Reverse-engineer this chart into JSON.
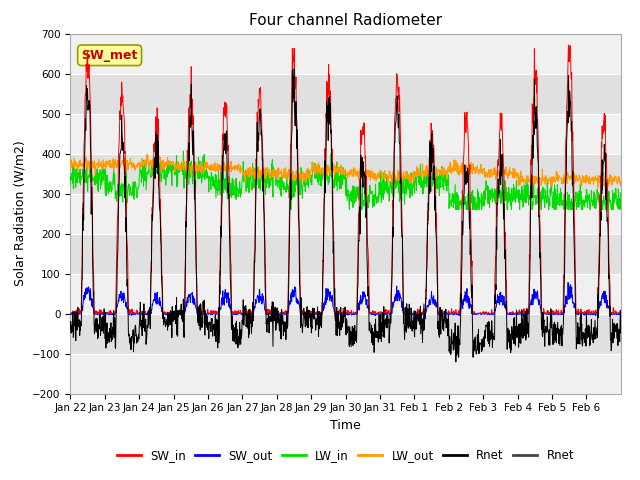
{
  "title": "Four channel Radiometer",
  "xlabel": "Time",
  "ylabel": "Solar Radiation (W/m2)",
  "ylim": [
    -200,
    700
  ],
  "yticks": [
    -200,
    -100,
    0,
    100,
    200,
    300,
    400,
    500,
    600,
    700
  ],
  "annotation_text": "SW_met",
  "annotation_color": "#cc0000",
  "annotation_bg": "#ffff99",
  "num_days": 16,
  "colors": {
    "SW_in": "#ff0000",
    "SW_out": "#0000ff",
    "LW_in": "#00dd00",
    "LW_out": "#ff9900",
    "Rnet_black": "#000000",
    "Rnet_dark": "#444444"
  },
  "legend_labels": [
    "SW_in",
    "SW_out",
    "LW_in",
    "LW_out",
    "Rnet",
    "Rnet"
  ],
  "background_color": "#e8e8e8",
  "plot_bg_color": "#ebebeb",
  "band_color_light": "#f0f0f0",
  "band_color_dark": "#e0e0e0",
  "tick_labels": [
    "Jan 22",
    "Jan 23",
    "Jan 24",
    "Jan 25",
    "Jan 26",
    "Jan 27",
    "Jan 28",
    "Jan 29",
    "Jan 30",
    "Jan 31",
    "Feb 1",
    "Feb 2",
    "Feb 3",
    "Feb 4",
    "Feb 5",
    "Feb 6"
  ]
}
